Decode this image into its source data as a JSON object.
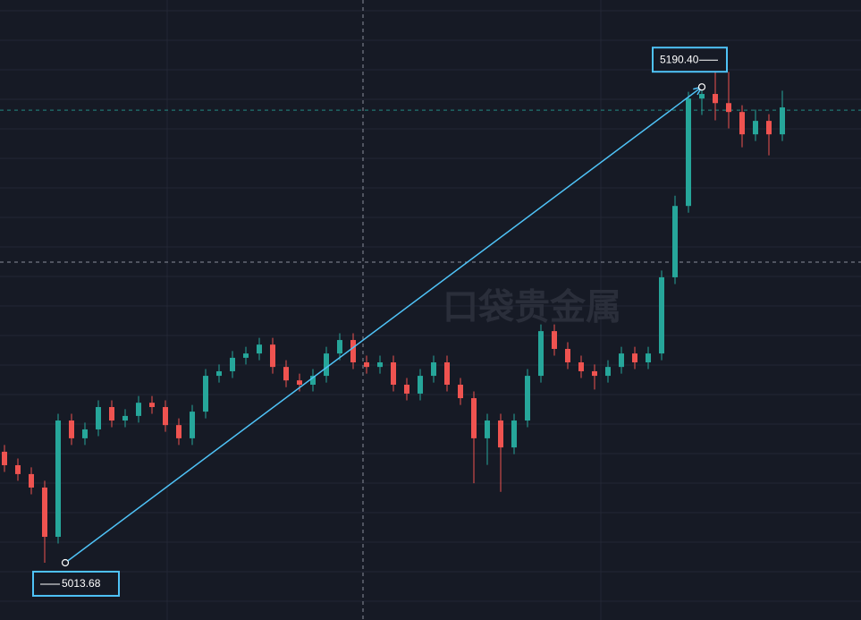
{
  "chart_data": {
    "type": "candlestick",
    "watermark": "口袋贵金属",
    "ylim": [
      4992.4,
      5222.7
    ],
    "up_color": "#26a69a",
    "down_color": "#ef5350",
    "open": [
      5054.9,
      5049.9,
      5046.6,
      5041.6,
      5023.3,
      5066.5,
      5059.9,
      5063.2,
      5071.5,
      5066.5,
      5068.2,
      5073.1,
      5071.5,
      5064.8,
      5059.9,
      5069.8,
      5083.1,
      5084.8,
      5089.8,
      5091.4,
      5094.7,
      5086.4,
      5081.4,
      5079.8,
      5083.1,
      5091.4,
      5096.4,
      5088.1,
      5086.4,
      5088.1,
      5079.8,
      5076.5,
      5083.1,
      5088.1,
      5079.8,
      5074.8,
      5059.9,
      5066.5,
      5056.5,
      5066.5,
      5083.1,
      5099.7,
      5093.1,
      5088.1,
      5084.8,
      5083.1,
      5086.4,
      5091.4,
      5088.1,
      5091.4,
      5119.7,
      5146.2,
      5186.1,
      5187.8,
      5184.4,
      5181.1,
      5172.8,
      5177.8,
      5172.8
    ],
    "high": [
      5057.4,
      5052.4,
      5049.1,
      5044.1,
      5069.0,
      5069.0,
      5065.7,
      5074.0,
      5074.0,
      5070.7,
      5075.6,
      5075.6,
      5074.0,
      5067.3,
      5072.3,
      5085.6,
      5087.3,
      5092.3,
      5093.9,
      5097.2,
      5097.2,
      5088.9,
      5083.9,
      5085.6,
      5093.9,
      5098.9,
      5098.9,
      5090.6,
      5090.6,
      5090.6,
      5082.3,
      5085.6,
      5090.6,
      5090.6,
      5082.3,
      5077.3,
      5069.0,
      5069.0,
      5069.0,
      5085.6,
      5102.2,
      5102.2,
      5095.6,
      5090.6,
      5087.3,
      5088.9,
      5093.9,
      5093.9,
      5093.9,
      5122.2,
      5150.0,
      5188.6,
      5190.4,
      5199.0,
      5196.0,
      5183.6,
      5182.0,
      5180.3,
      5189.0
    ],
    "low": [
      5047.4,
      5044.1,
      5039.1,
      5013.68,
      5020.8,
      5057.4,
      5057.4,
      5060.7,
      5064.0,
      5064.0,
      5065.7,
      5069.0,
      5062.3,
      5057.4,
      5057.4,
      5067.3,
      5080.6,
      5082.3,
      5087.3,
      5088.9,
      5083.9,
      5078.9,
      5077.3,
      5077.3,
      5080.6,
      5088.9,
      5085.6,
      5083.9,
      5083.9,
      5077.3,
      5074.0,
      5074.0,
      5080.6,
      5077.3,
      5072.3,
      5043.2,
      5050.0,
      5040.0,
      5054.0,
      5064.0,
      5080.6,
      5090.6,
      5085.6,
      5082.3,
      5078.0,
      5080.6,
      5083.9,
      5085.6,
      5085.6,
      5088.9,
      5117.2,
      5143.7,
      5180.0,
      5178.0,
      5175.0,
      5168.0,
      5170.3,
      5165.0,
      5170.3
    ],
    "close": [
      5049.9,
      5046.6,
      5041.6,
      5023.3,
      5066.5,
      5059.9,
      5063.2,
      5071.5,
      5066.5,
      5068.2,
      5073.1,
      5071.5,
      5064.8,
      5059.9,
      5069.8,
      5083.1,
      5084.8,
      5089.8,
      5091.4,
      5094.7,
      5086.4,
      5081.4,
      5079.8,
      5083.1,
      5091.4,
      5096.4,
      5088.1,
      5086.4,
      5088.1,
      5079.8,
      5076.5,
      5083.1,
      5088.1,
      5079.8,
      5074.8,
      5059.9,
      5066.5,
      5056.5,
      5066.5,
      5083.1,
      5099.7,
      5093.1,
      5088.1,
      5084.8,
      5083.1,
      5086.4,
      5091.4,
      5088.1,
      5091.4,
      5119.7,
      5146.2,
      5186.1,
      5187.8,
      5184.4,
      5181.1,
      5172.8,
      5177.8,
      5172.8,
      5182.8
    ],
    "last_price": 5181.8,
    "measure": {
      "from": 5013.68,
      "to": {
        "value": 5190.4,
        "label": "5190.40"
      }
    }
  }
}
